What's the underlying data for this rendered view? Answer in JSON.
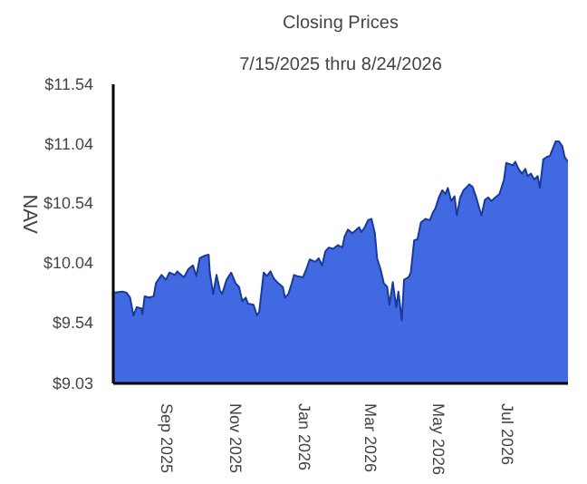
{
  "chart_data": {
    "type": "area",
    "title": "Closing Prices",
    "subtitle": "7/15/2025 thru 8/24/2026",
    "ylabel": "NAV",
    "x": [
      "2025-07-15",
      "2025-07-23",
      "2025-07-27",
      "2025-07-30",
      "2025-08-02",
      "2025-08-05",
      "2025-08-09",
      "2025-08-10",
      "2025-08-12",
      "2025-08-16",
      "2025-08-20",
      "2025-08-22",
      "2025-08-27",
      "2025-08-31",
      "2025-09-03",
      "2025-09-08",
      "2025-09-10",
      "2025-09-16",
      "2025-09-20",
      "2025-09-24",
      "2025-09-27",
      "2025-09-30",
      "2025-10-04",
      "2025-10-08",
      "2025-10-09",
      "2025-10-12",
      "2025-10-15",
      "2025-10-18",
      "2025-10-20",
      "2025-10-24",
      "2025-10-28",
      "2025-11-01",
      "2025-11-04",
      "2025-11-07",
      "2025-11-10",
      "2025-11-12",
      "2025-11-17",
      "2025-11-20",
      "2025-11-22",
      "2025-11-26",
      "2025-11-29",
      "2025-12-02",
      "2025-12-05",
      "2025-12-09",
      "2025-12-13",
      "2025-12-15",
      "2025-12-18",
      "2025-12-21",
      "2025-12-23",
      "2025-12-26",
      "2025-12-31",
      "2026-01-03",
      "2026-01-06",
      "2026-01-11",
      "2026-01-14",
      "2026-01-17",
      "2026-01-20",
      "2026-01-23",
      "2026-01-27",
      "2026-01-31",
      "2026-02-04",
      "2026-02-06",
      "2026-02-09",
      "2026-02-13",
      "2026-02-19",
      "2026-02-21",
      "2026-02-24",
      "2026-02-27",
      "2026-03-02",
      "2026-03-05",
      "2026-03-07",
      "2026-03-10",
      "2026-03-13",
      "2026-03-16",
      "2026-03-18",
      "2026-03-21",
      "2026-03-24",
      "2026-03-26",
      "2026-03-29",
      "2026-03-31",
      "2026-04-04",
      "2026-04-06",
      "2026-04-09",
      "2026-04-12",
      "2026-04-15",
      "2026-04-19",
      "2026-04-23",
      "2026-04-26",
      "2026-04-28",
      "2026-05-01",
      "2026-05-04",
      "2026-05-07",
      "2026-05-09",
      "2026-05-12",
      "2026-05-15",
      "2026-05-17",
      "2026-05-20",
      "2026-05-23",
      "2026-05-26",
      "2026-05-28",
      "2026-05-31",
      "2026-06-03",
      "2026-06-06",
      "2026-06-08",
      "2026-06-11",
      "2026-06-14",
      "2026-06-17",
      "2026-06-19",
      "2026-06-24",
      "2026-06-28",
      "2026-06-30",
      "2026-07-06",
      "2026-07-08",
      "2026-07-11",
      "2026-07-14",
      "2026-07-17",
      "2026-07-19",
      "2026-07-22",
      "2026-07-25",
      "2026-07-28",
      "2026-07-30",
      "2026-08-02",
      "2026-08-05",
      "2026-08-08",
      "2026-08-10",
      "2026-08-13",
      "2026-08-16",
      "2026-08-19",
      "2026-08-21",
      "2026-08-24"
    ],
    "series": [
      {
        "color": "#4169e1",
        "values": [
          9.79,
          9.8,
          9.79,
          9.75,
          9.6,
          9.67,
          9.66,
          9.61,
          9.76,
          9.75,
          9.76,
          9.87,
          9.94,
          9.9,
          9.96,
          9.94,
          9.97,
          9.92,
          9.99,
          10.02,
          9.93,
          10.08,
          10.1,
          10.11,
          9.96,
          9.78,
          9.94,
          9.81,
          9.78,
          9.9,
          9.96,
          9.87,
          9.84,
          9.72,
          9.75,
          9.7,
          9.69,
          9.6,
          9.63,
          9.96,
          9.93,
          9.97,
          9.91,
          9.87,
          9.84,
          9.75,
          9.78,
          9.87,
          9.94,
          9.93,
          9.92,
          9.99,
          10.07,
          10.05,
          10.08,
          10.02,
          10.14,
          10.17,
          10.16,
          10.19,
          10.17,
          10.26,
          10.32,
          10.29,
          10.34,
          10.3,
          10.34,
          10.4,
          10.41,
          10.29,
          10.08,
          9.99,
          9.87,
          9.84,
          9.69,
          9.88,
          9.67,
          9.8,
          9.56,
          9.9,
          9.92,
          9.96,
          10.23,
          10.24,
          10.38,
          10.41,
          10.4,
          10.47,
          10.5,
          10.59,
          10.65,
          10.62,
          10.67,
          10.56,
          10.6,
          10.44,
          10.59,
          10.65,
          10.68,
          10.7,
          10.68,
          10.6,
          10.5,
          10.44,
          10.57,
          10.59,
          10.56,
          10.58,
          10.62,
          10.74,
          10.88,
          10.86,
          10.89,
          10.83,
          10.79,
          10.83,
          10.77,
          10.79,
          10.74,
          10.77,
          10.67,
          10.91,
          10.93,
          10.94,
          10.99,
          11.06,
          11.06,
          11.02,
          10.93,
          10.89
        ]
      }
    ],
    "xlim": [
      "2025-07-15",
      "2026-08-24"
    ],
    "xticks": [
      {
        "value": "2025-09-01",
        "label": "Sep  2025"
      },
      {
        "value": "2025-11-01",
        "label": "Nov  2025"
      },
      {
        "value": "2026-01-01",
        "label": "Jan  2026"
      },
      {
        "value": "2026-03-01",
        "label": "Mar  2026"
      },
      {
        "value": "2026-05-01",
        "label": "May  2026"
      },
      {
        "value": "2026-07-01",
        "label": "Jul  2026"
      }
    ],
    "ylim": [
      9.03,
      11.54
    ],
    "yticks": [
      {
        "value": 9.03,
        "label": "$9.03"
      },
      {
        "value": 9.54,
        "label": "$9.54"
      },
      {
        "value": 10.04,
        "label": "$10.04"
      },
      {
        "value": 10.54,
        "label": "$10.54"
      },
      {
        "value": 11.04,
        "label": "$11.04"
      },
      {
        "value": 11.54,
        "label": "$11.54"
      }
    ],
    "grid": false
  }
}
